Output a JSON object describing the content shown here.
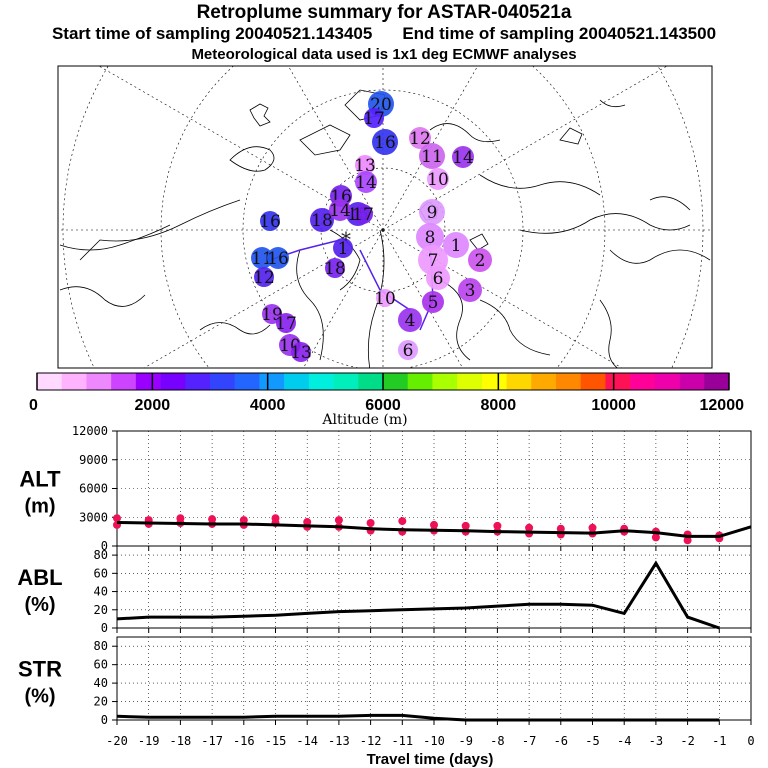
{
  "title": "Retroplume summary for ASTAR-040521a",
  "start_time": "Start time of sampling 20040521.143405",
  "end_time": "End time of sampling 20040521.143500",
  "met_info": "Meteorological data used is 1x1 deg ECMWF analyses",
  "colorbar": {
    "label": "Altitude (m)",
    "ticks": [
      "0",
      "2000",
      "4000",
      "6000",
      "8000",
      "10000",
      "12000"
    ],
    "colors": [
      "#ffd9ff",
      "#ffb3ff",
      "#ee88ff",
      "#cc44ff",
      "#9900ff",
      "#7700ff",
      "#5522ff",
      "#3344ff",
      "#2266ff",
      "#1199ff",
      "#00ccee",
      "#00eedd",
      "#00eebb",
      "#00dd88",
      "#22cc22",
      "#66ee00",
      "#aaff00",
      "#ddff00",
      "#ffff00",
      "#ffd700",
      "#ffaa00",
      "#ff8800",
      "#ff5500",
      "#ff1155",
      "#ff0099",
      "#ee00aa",
      "#cc00aa",
      "#990099"
    ]
  },
  "map": {
    "clusters": [
      {
        "label": "20",
        "c": "#2255ee"
      },
      {
        "label": "17",
        "c": "#5522ff"
      },
      {
        "label": "16",
        "c": "#3333ee"
      },
      {
        "label": "12",
        "c": "#dd77ee"
      },
      {
        "label": "11",
        "c": "#cc66ee"
      },
      {
        "label": "14",
        "c": "#9933ee"
      },
      {
        "label": "13",
        "c": "#ee88ff"
      },
      {
        "label": "14",
        "c": "#aa44ff"
      },
      {
        "label": "10",
        "c": "#ee99ff"
      },
      {
        "label": "16",
        "c": "#7722ee"
      },
      {
        "label": "9",
        "c": "#dd99ff"
      },
      {
        "label": "8",
        "c": "#dd88ff"
      },
      {
        "label": "7",
        "c": "#ee99ff"
      },
      {
        "label": "1",
        "c": "#dd88ff"
      },
      {
        "label": "6",
        "c": "#ee99ff"
      },
      {
        "label": "2",
        "c": "#cc55ee"
      },
      {
        "label": "3",
        "c": "#bb44ee"
      },
      {
        "label": "5",
        "c": "#aa33ee"
      },
      {
        "label": "4",
        "c": "#9933ee"
      },
      {
        "label": "6",
        "c": "#dd99ff"
      },
      {
        "label": "16",
        "c": "#3333ee"
      },
      {
        "label": "18",
        "c": "#5522ee"
      },
      {
        "label": "11",
        "c": "#2255ee"
      },
      {
        "label": "16",
        "c": "#2255ee"
      },
      {
        "label": "19",
        "c": "#9933ee"
      },
      {
        "label": "17",
        "c": "#8822ee"
      },
      {
        "label": "10",
        "c": "#9933ee"
      },
      {
        "label": "13",
        "c": "#8822ee"
      },
      {
        "label": "18",
        "c": "#7722ee"
      },
      {
        "label": "12",
        "c": "#5522ee"
      },
      {
        "label": "15",
        "c": "#5522ee"
      },
      {
        "label": "17",
        "c": "#7722ee"
      },
      {
        "label": "14",
        "c": "#9933ee"
      },
      {
        "label": "1",
        "c": "#5522ee"
      },
      {
        "label": "10",
        "c": "#ee99ff"
      }
    ]
  },
  "chart_data": [
    {
      "name": "ALT",
      "ylabel": "ALT (m)",
      "type": "line",
      "x": [
        -20,
        -19,
        -18,
        -17,
        -16,
        -15,
        -14,
        -13,
        -12,
        -11,
        -10,
        -9,
        -8,
        -7,
        -6,
        -5,
        -4,
        -3,
        -2,
        -1,
        0
      ],
      "values": [
        2450,
        2400,
        2350,
        2300,
        2300,
        2200,
        2100,
        2000,
        1800,
        1700,
        1650,
        1600,
        1500,
        1450,
        1400,
        1350,
        1600,
        1400,
        1000,
        1000,
        2000
      ],
      "ylim": [
        0,
        12000
      ],
      "yticks": [
        "0",
        "3000",
        "6000",
        "9000",
        "12000"
      ],
      "scatter_color": "#ee1155",
      "scatter": [
        [
          -20,
          2900
        ],
        [
          -20,
          2200
        ],
        [
          -19,
          2700
        ],
        [
          -19,
          2300
        ],
        [
          -18,
          2900
        ],
        [
          -18,
          2400
        ],
        [
          -17,
          2800
        ],
        [
          -17,
          2300
        ],
        [
          -16,
          2700
        ],
        [
          -16,
          2200
        ],
        [
          -15,
          2900
        ],
        [
          -15,
          2400
        ],
        [
          -14,
          2500
        ],
        [
          -14,
          2000
        ],
        [
          -13,
          2700
        ],
        [
          -13,
          2000
        ],
        [
          -12,
          2400
        ],
        [
          -12,
          1600
        ],
        [
          -11,
          2600
        ],
        [
          -11,
          1500
        ],
        [
          -10,
          2200
        ],
        [
          -10,
          1600
        ],
        [
          -9,
          2100
        ],
        [
          -9,
          1500
        ],
        [
          -8,
          2100
        ],
        [
          -8,
          1500
        ],
        [
          -7,
          1900
        ],
        [
          -7,
          1300
        ],
        [
          -6,
          1800
        ],
        [
          -6,
          1200
        ],
        [
          -5,
          1900
        ],
        [
          -5,
          1300
        ],
        [
          -4,
          1800
        ],
        [
          -4,
          1500
        ],
        [
          -3,
          1500
        ],
        [
          -3,
          900
        ],
        [
          -2,
          1200
        ],
        [
          -2,
          600
        ],
        [
          -1,
          1100
        ],
        [
          -1,
          800
        ]
      ]
    },
    {
      "name": "ABL",
      "ylabel": "ABL (%)",
      "type": "line",
      "x": [
        -20,
        -19,
        -18,
        -17,
        -16,
        -15,
        -14,
        -13,
        -12,
        -11,
        -10,
        -9,
        -8,
        -7,
        -6,
        -5,
        -4,
        -3,
        -2,
        -1
      ],
      "values": [
        10,
        12,
        12,
        12,
        13,
        14,
        16,
        18,
        19,
        20,
        21,
        22,
        24,
        26,
        26,
        25,
        16,
        71,
        12,
        0
      ],
      "ylim": [
        0,
        90
      ],
      "yticks": [
        "0",
        "20",
        "40",
        "60",
        "80"
      ]
    },
    {
      "name": "STR",
      "ylabel": "STR (%)",
      "type": "line",
      "x": [
        -20,
        -19,
        -18,
        -17,
        -16,
        -15,
        -14,
        -13,
        -12,
        -11,
        -10,
        -9,
        -8,
        -7,
        -6,
        -5,
        -4,
        -3,
        -2,
        -1
      ],
      "values": [
        4,
        3,
        3,
        3,
        3,
        4,
        4,
        4,
        5,
        5,
        2,
        0,
        0,
        0,
        0,
        0,
        0,
        0,
        0,
        0
      ],
      "ylim": [
        0,
        90
      ],
      "yticks": [
        "0",
        "20",
        "40",
        "60",
        "80"
      ]
    }
  ],
  "xaxis": {
    "label": "Travel time (days)",
    "ticks": [
      "-20",
      "-19",
      "-18",
      "-17",
      "-16",
      "-15",
      "-14",
      "-13",
      "-12",
      "-11",
      "-10",
      "-9",
      "-8",
      "-7",
      "-6",
      "-5",
      "-4",
      "-3",
      "-2",
      "-1",
      "0"
    ]
  }
}
